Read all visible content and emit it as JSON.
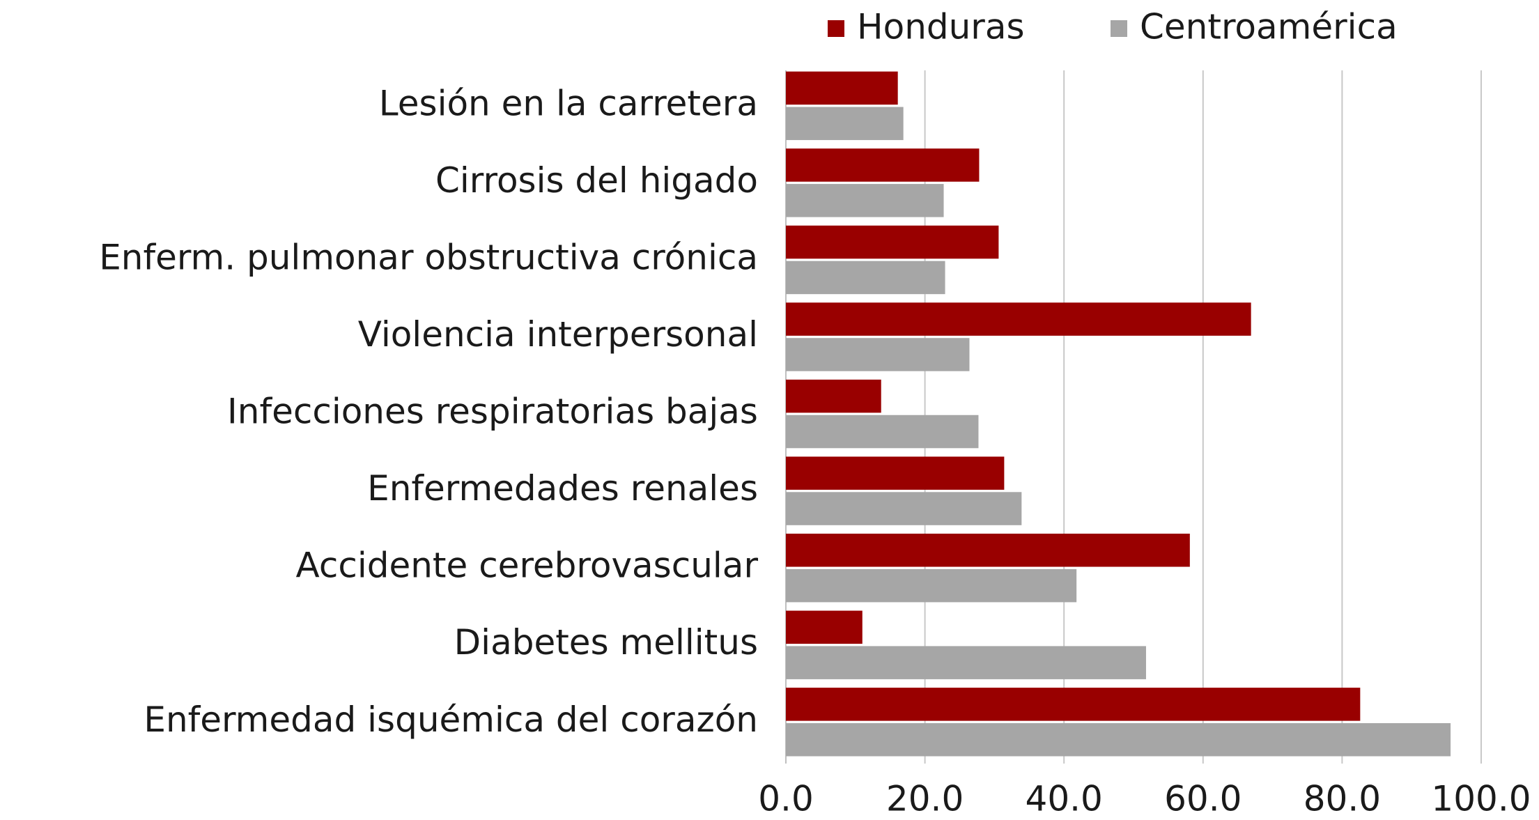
{
  "chart_data": {
    "type": "barh",
    "categories": [
      "Lesión en la carretera",
      "Cirrosis del higado",
      "Enferm. pulmonar obstructiva crónica",
      "Violencia interpersonal",
      "Infecciones respiratorias bajas",
      "Enfermedades renales",
      "Accidente cerebrovascular",
      "Diabetes mellitus",
      "Enfermedad isquémica del corazón"
    ],
    "series": [
      {
        "name": "Honduras",
        "color": "#990000",
        "values": [
          16.1,
          27.8,
          30.6,
          66.9,
          13.7,
          31.4,
          58.1,
          11.0,
          82.6
        ]
      },
      {
        "name": "Centroamérica",
        "color": "#a6a6a6",
        "values": [
          16.9,
          22.7,
          22.9,
          26.4,
          27.7,
          33.9,
          41.8,
          51.8,
          95.6
        ]
      }
    ],
    "xlim": [
      0,
      100
    ],
    "xticks": [
      {
        "value": 0,
        "label": "0.0"
      },
      {
        "value": 20,
        "label": "20.0"
      },
      {
        "value": 40,
        "label": "40.0"
      },
      {
        "value": 60,
        "label": "60.0"
      },
      {
        "value": 80,
        "label": "80.0"
      },
      {
        "value": 100,
        "label": "100.0"
      }
    ],
    "grid": true,
    "legend": "top"
  }
}
